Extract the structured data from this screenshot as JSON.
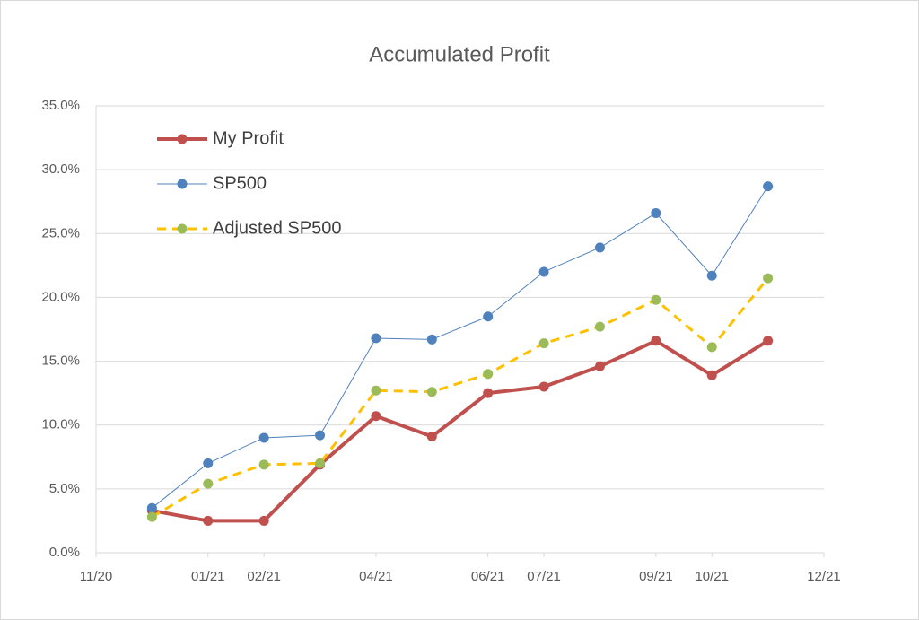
{
  "chart_data": {
    "type": "line",
    "title": "Accumulated Profit",
    "x": [
      "2020-12",
      "2021-01",
      "2021-02",
      "2021-03",
      "2021-04",
      "2021-05",
      "2021-06",
      "2021-07",
      "2021-08",
      "2021-09",
      "2021-10",
      "2021-11"
    ],
    "series": [
      {
        "name": "My Profit",
        "color": "#c0504d",
        "marker_color": "#c0504d",
        "line_width": 4,
        "dashed": false,
        "values": [
          3.3,
          2.5,
          2.5,
          6.9,
          10.7,
          9.1,
          12.5,
          13.0,
          14.6,
          16.6,
          13.9,
          16.6
        ]
      },
      {
        "name": "SP500",
        "color": "#4f81bd",
        "marker_color": "#4f81bd",
        "line_width": 1,
        "dashed": false,
        "values": [
          3.5,
          7.0,
          9.0,
          9.2,
          16.8,
          16.7,
          18.5,
          22.0,
          23.9,
          26.6,
          21.7,
          28.7
        ]
      },
      {
        "name": "Adjusted SP500",
        "color": "#ffc000",
        "marker_color": "#9bbb59",
        "line_width": 3,
        "dashed": true,
        "values": [
          2.8,
          5.4,
          6.9,
          7.0,
          12.7,
          12.6,
          14.0,
          16.4,
          17.7,
          19.8,
          16.1,
          21.5
        ]
      }
    ],
    "xlim": [
      "2020-11",
      "2021-12"
    ],
    "xticks": [
      {
        "value": "2020-11",
        "label": "11/20"
      },
      {
        "value": "2021-01",
        "label": "01/21"
      },
      {
        "value": "2021-02",
        "label": "02/21"
      },
      {
        "value": "2021-04",
        "label": "04/21"
      },
      {
        "value": "2021-06",
        "label": "06/21"
      },
      {
        "value": "2021-07",
        "label": "07/21"
      },
      {
        "value": "2021-09",
        "label": "09/21"
      },
      {
        "value": "2021-10",
        "label": "10/21"
      },
      {
        "value": "2021-12",
        "label": "12/21"
      }
    ],
    "ylim": [
      0,
      35
    ],
    "yticks": [
      {
        "value": 0,
        "label": "0.0%"
      },
      {
        "value": 5,
        "label": "5.0%"
      },
      {
        "value": 10,
        "label": "10.0%"
      },
      {
        "value": 15,
        "label": "15.0%"
      },
      {
        "value": 20,
        "label": "20.0%"
      },
      {
        "value": 25,
        "label": "25.0%"
      },
      {
        "value": 30,
        "label": "30.0%"
      },
      {
        "value": 35,
        "label": "35.0%"
      }
    ],
    "grid": true,
    "legend": "upper-left"
  }
}
